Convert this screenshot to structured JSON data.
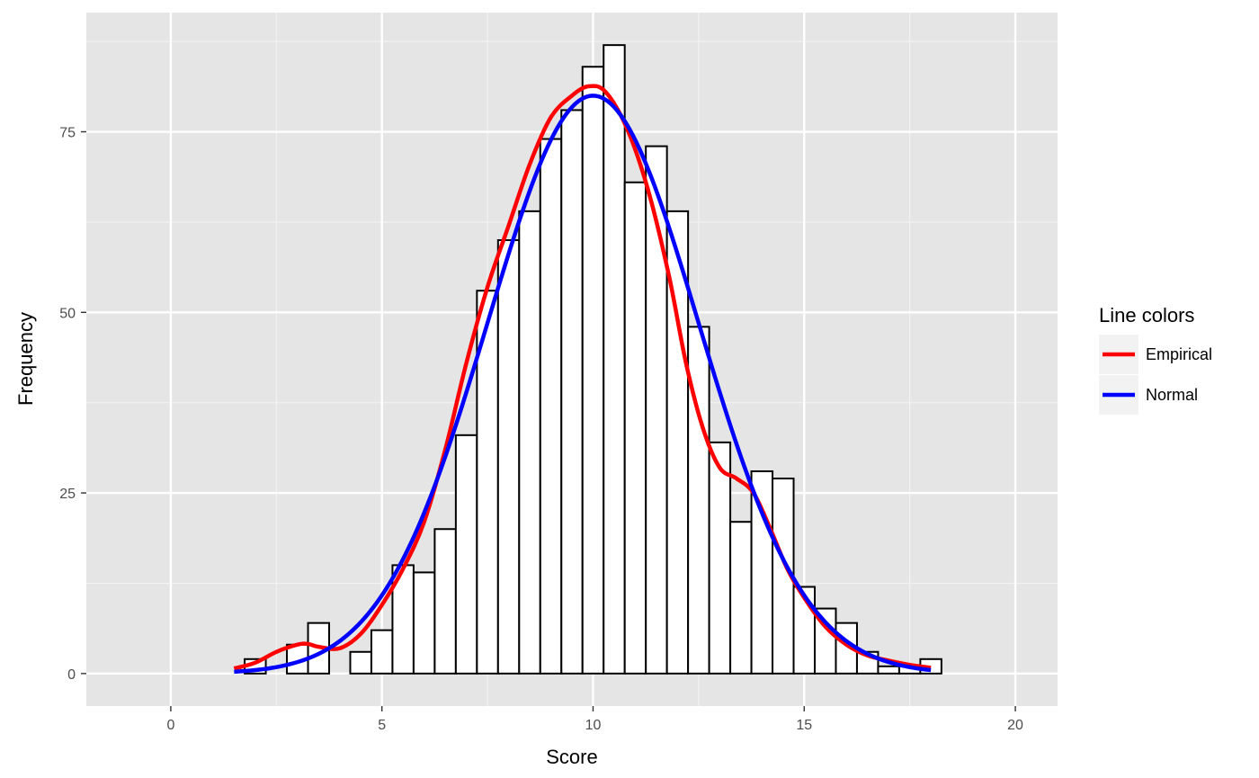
{
  "chart_data": {
    "type": "bar",
    "xlabel": "Score",
    "ylabel": "Frequency",
    "xlim": [
      -2.0,
      21.0
    ],
    "ylim": [
      -4.5,
      91.5
    ],
    "x_ticks": [
      0,
      5,
      10,
      15,
      20
    ],
    "y_ticks": [
      0,
      25,
      50,
      75
    ],
    "x_tick_labels": [
      "0",
      "5",
      "10",
      "15",
      "20"
    ],
    "y_tick_labels": [
      "0",
      "25",
      "50",
      "75"
    ],
    "grid": true,
    "bin_width": 0.5,
    "histogram": {
      "bin_centers": [
        0.0,
        0.5,
        1.0,
        1.5,
        2.0,
        2.5,
        3.0,
        3.5,
        4.0,
        4.5,
        5.0,
        5.5,
        6.0,
        6.5,
        7.0,
        7.5,
        8.0,
        8.5,
        9.0,
        9.5,
        10.0,
        10.5,
        11.0,
        11.5,
        12.0,
        12.5,
        13.0,
        13.5,
        14.0,
        14.5,
        15.0,
        15.5,
        16.0,
        16.5,
        17.0,
        17.5,
        18.0,
        18.5,
        19.0,
        19.5,
        20.0
      ],
      "counts": [
        0,
        0,
        0,
        0,
        2,
        0,
        4,
        7,
        0,
        3,
        6,
        15,
        14,
        20,
        33,
        53,
        60,
        64,
        74,
        78,
        84,
        87,
        68,
        73,
        64,
        48,
        32,
        21,
        28,
        27,
        12,
        9,
        7,
        3,
        1,
        1,
        2,
        0,
        0,
        0,
        0
      ]
    },
    "series": [
      {
        "name": "Empirical",
        "color": "#ff0000",
        "x": [
          1.5,
          2.0,
          2.5,
          3.0,
          3.25,
          3.5,
          4.0,
          4.5,
          5.0,
          5.5,
          6.0,
          6.5,
          7.0,
          7.5,
          8.0,
          8.5,
          9.0,
          9.5,
          9.9,
          10.3,
          10.8,
          11.3,
          11.8,
          12.2,
          12.6,
          13.0,
          13.4,
          13.8,
          14.2,
          14.6,
          15.0,
          15.5,
          16.0,
          16.5,
          17.0,
          17.5,
          18.0
        ],
        "y": [
          0.7,
          1.5,
          3.0,
          4.0,
          4.1,
          3.7,
          3.5,
          5.5,
          9.5,
          14.5,
          21.0,
          31.0,
          43.0,
          53.5,
          62.0,
          70.5,
          77.0,
          80.0,
          81.3,
          80.5,
          75.5,
          67.0,
          55.0,
          43.0,
          34.0,
          28.5,
          27.0,
          25.0,
          20.0,
          14.5,
          10.5,
          6.5,
          4.0,
          2.5,
          1.8,
          1.2,
          0.8
        ]
      },
      {
        "name": "Normal",
        "color": "#0000ff",
        "mean": 10.0,
        "sd": 2.5,
        "peak": 80.0,
        "x_range": [
          1.5,
          18.0
        ]
      }
    ],
    "legend": {
      "title": "Line colors",
      "position": "right",
      "items": [
        "Empirical",
        "Normal"
      ]
    }
  }
}
